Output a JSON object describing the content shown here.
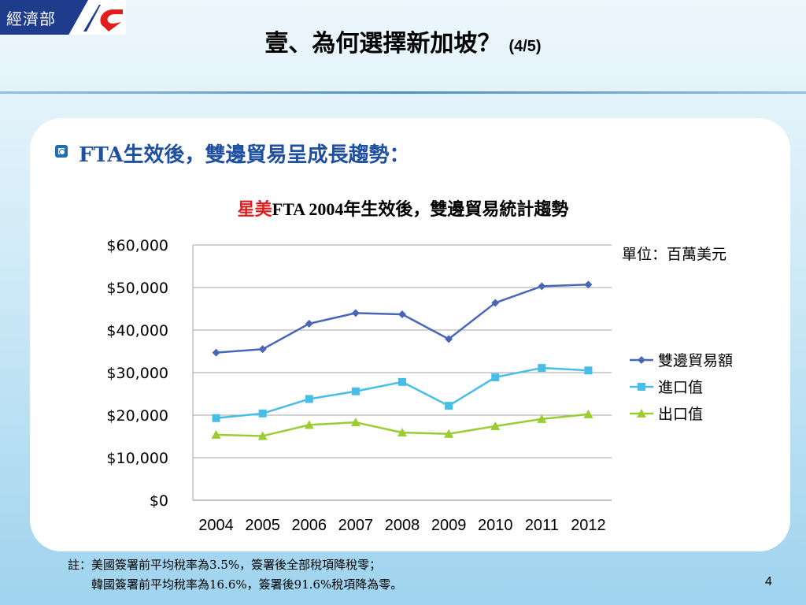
{
  "logo": {
    "text": "經濟部"
  },
  "title": {
    "main": "壹、為何選擇新加坡？",
    "sub": "(4/5)"
  },
  "heading": "FTA生效後，雙邊貿易呈成長趨勢：",
  "chart_title": {
    "red": "星美",
    "mid": "FTA 2004",
    "rest": "年生效後，雙邊貿易統計趨勢"
  },
  "unit": "單位：百萬美元",
  "notes": [
    "註：美國簽署前平均稅率為3.5%，簽署後全部稅項降稅零；",
    "　　韓國簽署前平均稅率為16.6%，簽署後91.6%稅項降為零。"
  ],
  "page_number": "4",
  "chart_data": {
    "type": "line",
    "title": "星美FTA 2004年生效後，雙邊貿易統計趨勢",
    "x": [
      "2004",
      "2005",
      "2006",
      "2007",
      "2008",
      "2009",
      "2010",
      "2011",
      "2012"
    ],
    "ylim": [
      0,
      60000
    ],
    "yticks": [
      "$0",
      "$10,000",
      "$20,000",
      "$30,000",
      "$40,000",
      "$50,000",
      "$60,000"
    ],
    "grid": true,
    "legend_position": "right",
    "series": [
      {
        "name": "雙邊貿易額",
        "color": "#4a66b8",
        "marker": "diamond",
        "values": [
          34700,
          35500,
          41500,
          44000,
          43700,
          37900,
          46400,
          50300,
          50700
        ]
      },
      {
        "name": "進口值",
        "color": "#48bde8",
        "marker": "square",
        "values": [
          19300,
          20400,
          23800,
          25600,
          27800,
          22200,
          28900,
          31100,
          30500
        ]
      },
      {
        "name": "出口值",
        "color": "#9acd32",
        "marker": "triangle",
        "values": [
          15400,
          15100,
          17700,
          18300,
          15900,
          15600,
          17400,
          19100,
          20200
        ]
      }
    ]
  }
}
